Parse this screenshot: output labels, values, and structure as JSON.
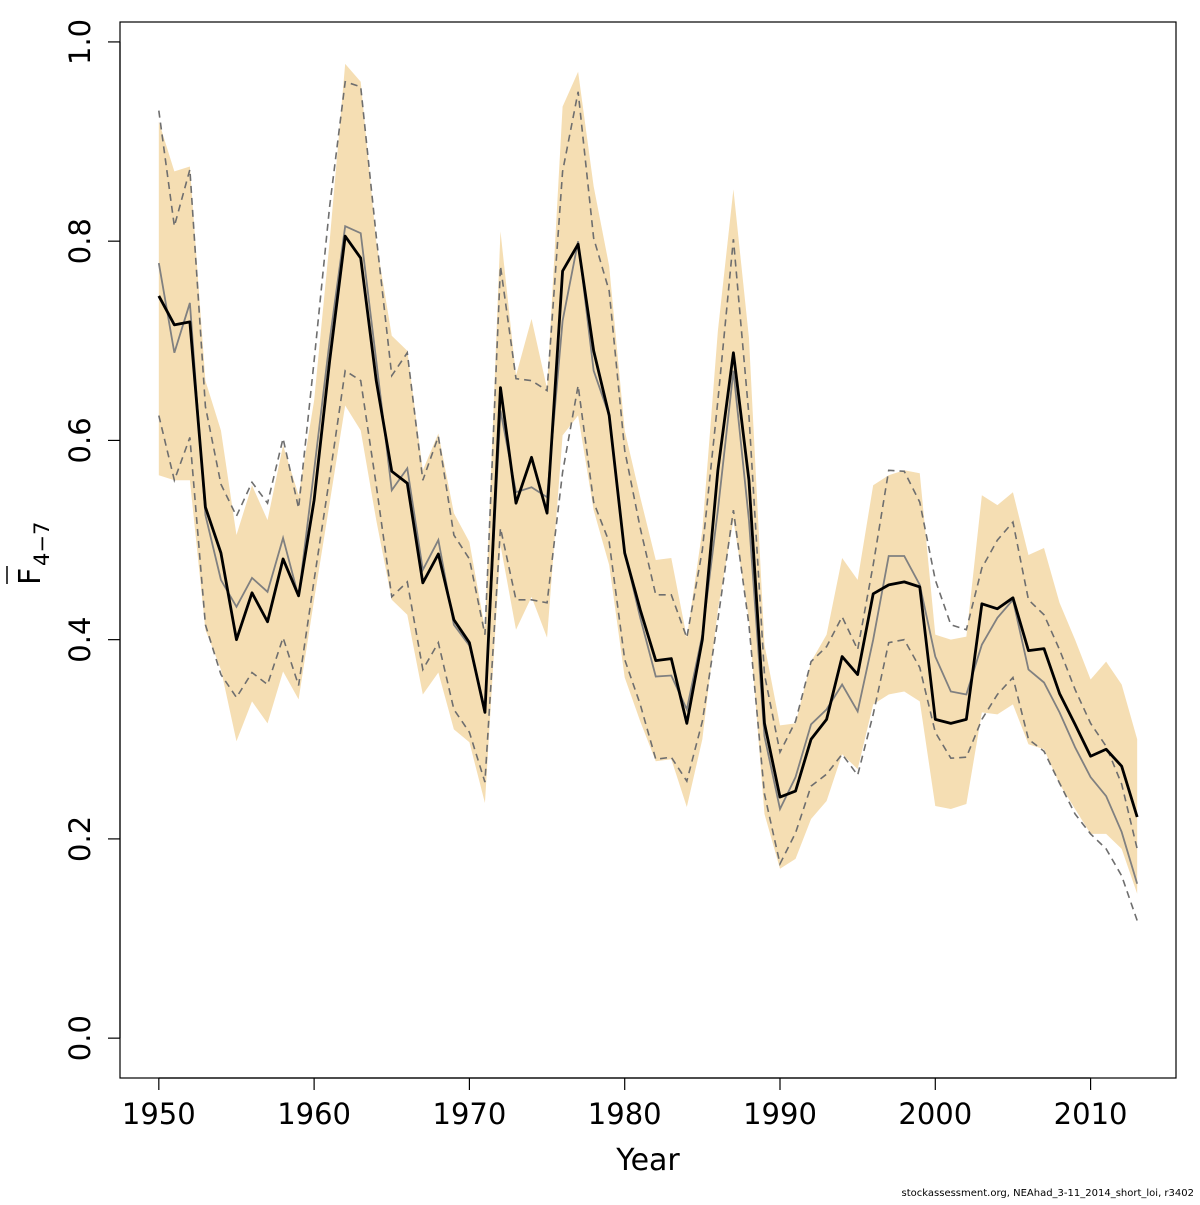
{
  "chart_data": {
    "type": "line",
    "xlabel": "Year",
    "ylabel_main": "F",
    "ylabel_sub": "4−7",
    "xlim": [
      1947.5,
      2015.5
    ],
    "ylim": [
      -0.04,
      1.02
    ],
    "x_ticks": [
      1950,
      1960,
      1970,
      1980,
      1990,
      2000,
      2010
    ],
    "x_tick_labels": [
      "1950",
      "1960",
      "1970",
      "1980",
      "1990",
      "2000",
      "2010"
    ],
    "y_ticks": [
      0.0,
      0.2,
      0.4,
      0.6,
      0.8,
      1.0
    ],
    "y_tick_labels": [
      "0.0",
      "0.2",
      "0.4",
      "0.6",
      "0.8",
      "1.0"
    ],
    "colors": {
      "band": "#f5deb3",
      "main_line": "#000000",
      "grey_line": "#808080",
      "dashed_line": "#6e6e6e"
    },
    "years": [
      1950,
      1951,
      1952,
      1953,
      1954,
      1955,
      1956,
      1957,
      1958,
      1959,
      1960,
      1961,
      1962,
      1963,
      1964,
      1965,
      1966,
      1967,
      1968,
      1969,
      1970,
      1971,
      1972,
      1973,
      1974,
      1975,
      1976,
      1977,
      1978,
      1979,
      1980,
      1981,
      1982,
      1983,
      1984,
      1985,
      1986,
      1987,
      1988,
      1989,
      1990,
      1991,
      1992,
      1993,
      1994,
      1995,
      1996,
      1997,
      1998,
      1999,
      2000,
      2001,
      2002,
      2003,
      2004,
      2005,
      2006,
      2007,
      2008,
      2009,
      2010,
      2011,
      2012,
      2013
    ],
    "estimate": [
      0.745,
      0.716,
      0.719,
      0.533,
      0.487,
      0.4,
      0.447,
      0.418,
      0.481,
      0.444,
      0.54,
      0.68,
      0.805,
      0.783,
      0.66,
      0.569,
      0.557,
      0.457,
      0.486,
      0.42,
      0.397,
      0.327,
      0.653,
      0.537,
      0.583,
      0.527,
      0.77,
      0.797,
      0.69,
      0.625,
      0.487,
      0.43,
      0.379,
      0.381,
      0.316,
      0.4,
      0.57,
      0.688,
      0.56,
      0.316,
      0.242,
      0.248,
      0.3,
      0.32,
      0.383,
      0.365,
      0.446,
      0.455,
      0.458,
      0.453,
      0.32,
      0.316,
      0.32,
      0.436,
      0.431,
      0.442,
      0.389,
      0.391,
      0.346,
      0.315,
      0.283,
      0.29,
      0.273,
      0.222
    ],
    "band_upper": [
      0.92,
      0.87,
      0.875,
      0.66,
      0.61,
      0.505,
      0.555,
      0.52,
      0.595,
      0.545,
      0.64,
      0.8,
      0.978,
      0.96,
      0.8,
      0.705,
      0.69,
      0.57,
      0.607,
      0.527,
      0.498,
      0.411,
      0.81,
      0.665,
      0.722,
      0.652,
      0.935,
      0.97,
      0.855,
      0.775,
      0.61,
      0.543,
      0.48,
      0.482,
      0.402,
      0.51,
      0.71,
      0.852,
      0.703,
      0.395,
      0.314,
      0.316,
      0.378,
      0.405,
      0.482,
      0.46,
      0.555,
      0.565,
      0.57,
      0.567,
      0.405,
      0.4,
      0.403,
      0.545,
      0.535,
      0.548,
      0.485,
      0.492,
      0.437,
      0.4,
      0.36,
      0.378,
      0.355,
      0.3
    ],
    "band_lower": [
      0.565,
      0.56,
      0.56,
      0.41,
      0.37,
      0.298,
      0.338,
      0.316,
      0.368,
      0.34,
      0.44,
      0.537,
      0.635,
      0.61,
      0.52,
      0.44,
      0.425,
      0.345,
      0.367,
      0.31,
      0.297,
      0.236,
      0.495,
      0.41,
      0.443,
      0.402,
      0.605,
      0.625,
      0.53,
      0.475,
      0.362,
      0.318,
      0.278,
      0.28,
      0.232,
      0.3,
      0.43,
      0.52,
      0.42,
      0.225,
      0.17,
      0.18,
      0.22,
      0.238,
      0.285,
      0.27,
      0.335,
      0.345,
      0.348,
      0.338,
      0.233,
      0.23,
      0.235,
      0.327,
      0.325,
      0.335,
      0.295,
      0.29,
      0.255,
      0.23,
      0.205,
      0.205,
      0.19,
      0.145
    ],
    "grey_estimate": [
      0.778,
      0.688,
      0.738,
      0.525,
      0.46,
      0.433,
      0.462,
      0.448,
      0.502,
      0.443,
      0.57,
      0.7,
      0.815,
      0.808,
      0.68,
      0.55,
      0.572,
      0.47,
      0.5,
      0.415,
      0.394,
      0.33,
      0.63,
      0.548,
      0.553,
      0.543,
      0.72,
      0.8,
      0.67,
      0.625,
      0.488,
      0.422,
      0.363,
      0.364,
      0.33,
      0.405,
      0.53,
      0.67,
      0.52,
      0.303,
      0.23,
      0.262,
      0.315,
      0.33,
      0.355,
      0.328,
      0.4,
      0.484,
      0.484,
      0.455,
      0.383,
      0.348,
      0.345,
      0.395,
      0.422,
      0.44,
      0.37,
      0.357,
      0.327,
      0.292,
      0.262,
      0.243,
      0.207,
      0.155
    ],
    "grey_upper": [
      0.931,
      0.815,
      0.872,
      0.634,
      0.556,
      0.524,
      0.558,
      0.537,
      0.602,
      0.532,
      0.68,
      0.835,
      0.96,
      0.955,
      0.805,
      0.665,
      0.688,
      0.56,
      0.604,
      0.505,
      0.481,
      0.405,
      0.775,
      0.662,
      0.66,
      0.65,
      0.87,
      0.95,
      0.803,
      0.75,
      0.59,
      0.512,
      0.445,
      0.445,
      0.402,
      0.49,
      0.64,
      0.802,
      0.625,
      0.365,
      0.287,
      0.318,
      0.378,
      0.393,
      0.423,
      0.39,
      0.475,
      0.57,
      0.569,
      0.538,
      0.46,
      0.415,
      0.41,
      0.472,
      0.5,
      0.518,
      0.44,
      0.425,
      0.39,
      0.35,
      0.316,
      0.293,
      0.255,
      0.19
    ],
    "grey_lower": [
      0.625,
      0.56,
      0.603,
      0.415,
      0.365,
      0.342,
      0.367,
      0.355,
      0.402,
      0.354,
      0.46,
      0.563,
      0.67,
      0.66,
      0.555,
      0.443,
      0.458,
      0.37,
      0.397,
      0.33,
      0.307,
      0.257,
      0.512,
      0.44,
      0.44,
      0.437,
      0.568,
      0.655,
      0.538,
      0.498,
      0.38,
      0.335,
      0.28,
      0.282,
      0.258,
      0.318,
      0.42,
      0.53,
      0.415,
      0.245,
      0.175,
      0.206,
      0.253,
      0.265,
      0.285,
      0.264,
      0.325,
      0.397,
      0.4,
      0.372,
      0.307,
      0.281,
      0.282,
      0.32,
      0.345,
      0.362,
      0.3,
      0.288,
      0.256,
      0.225,
      0.205,
      0.19,
      0.163,
      0.118
    ]
  },
  "footer_text": "stockassessment.org, NEAhad_3-11_2014_short_loi, r3402"
}
